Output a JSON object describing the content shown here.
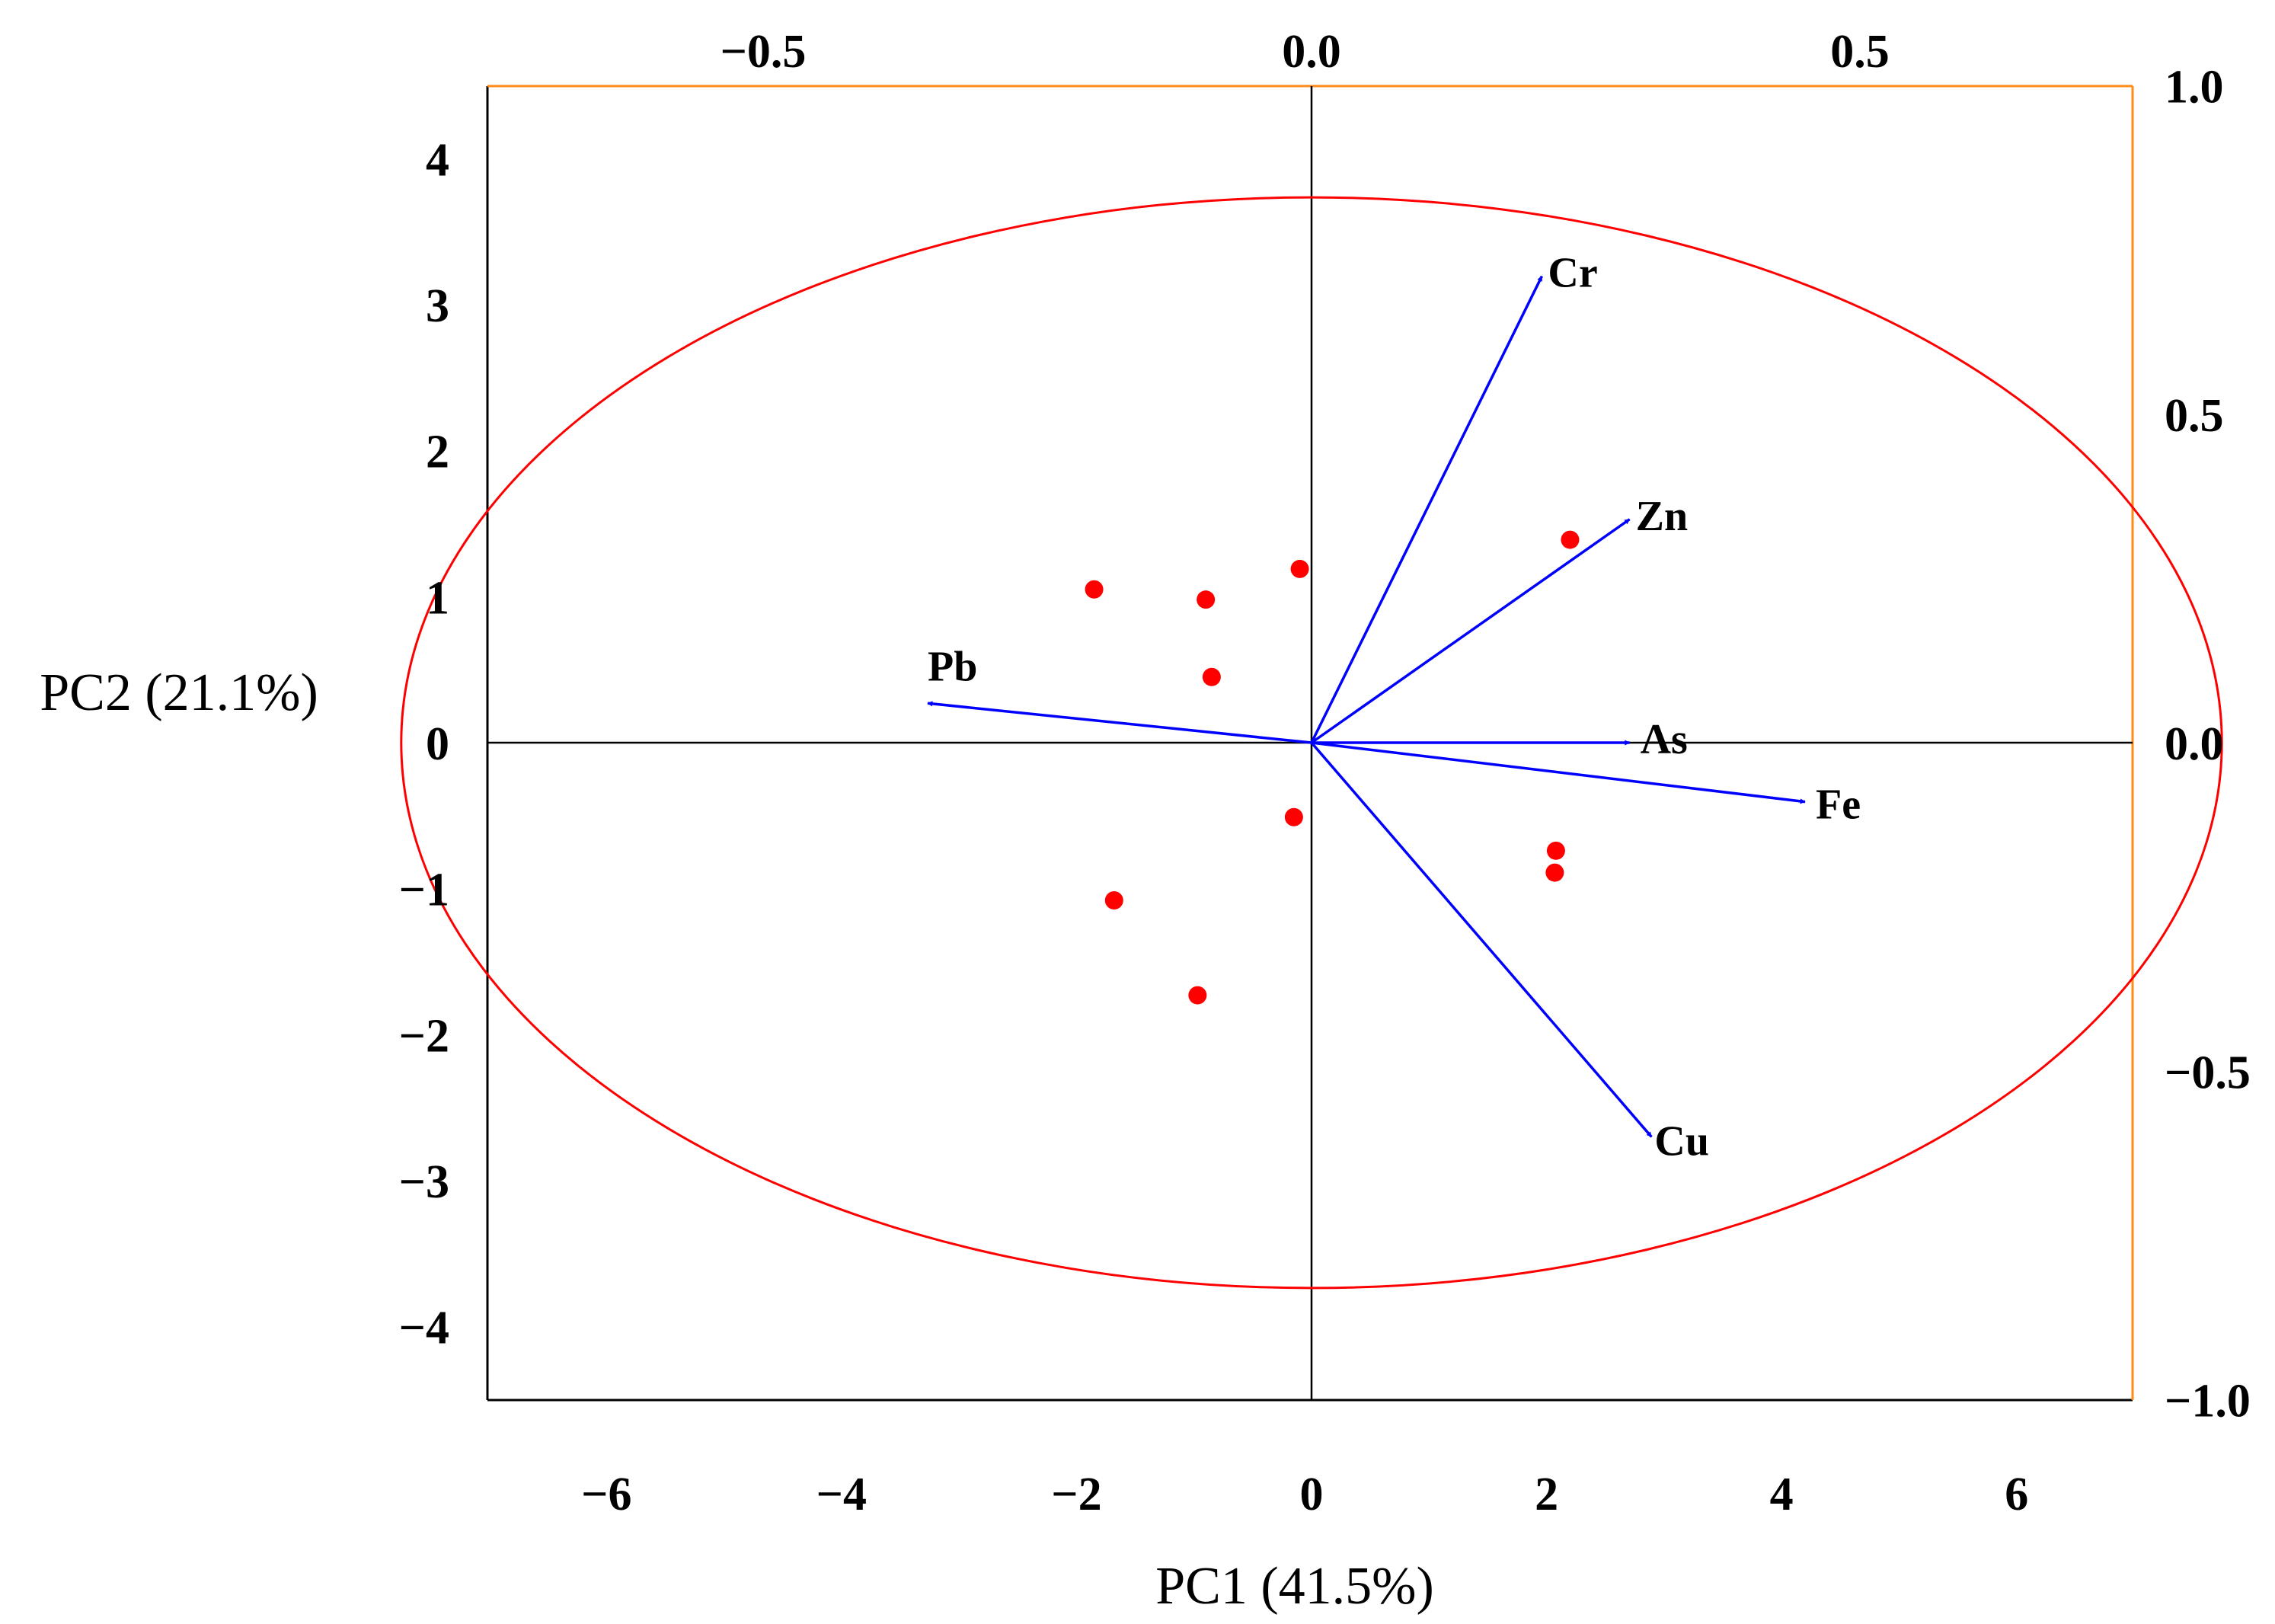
{
  "chart_data": {
    "type": "scatter",
    "subtype": "pca-biplot",
    "title": "",
    "xlabel": "PC1 (41.5%)",
    "ylabel": "PC2 (21.1%)",
    "xlim": [
      -7,
      7
    ],
    "ylim": [
      -4.5,
      4.5
    ],
    "x_ticks": [
      "−6",
      "−4",
      "−2",
      "0",
      "2",
      "4",
      "6"
    ],
    "x_tick_values": [
      -6,
      -4,
      -2,
      0,
      2,
      4,
      6
    ],
    "y_ticks": [
      "−4",
      "−3",
      "−2",
      "−1",
      "0",
      "1",
      "2",
      "3",
      "4"
    ],
    "y_tick_values": [
      -4,
      -3,
      -2,
      -1,
      0,
      1,
      2,
      3,
      4
    ],
    "top_axis": {
      "range": [
        -0.75,
        0.75
      ],
      "ticks": [
        "−0.5",
        "0.0",
        "0.5"
      ],
      "tick_values": [
        -0.5,
        0.0,
        0.5
      ]
    },
    "right_axis": {
      "range": [
        -1.0,
        1.0
      ],
      "ticks": [
        "1.0",
        "0.5",
        "0.0",
        "−0.5",
        "−1.0"
      ],
      "tick_values": [
        1.0,
        0.5,
        0.0,
        -0.5,
        -1.0
      ]
    },
    "scores": [
      {
        "x": -1.85,
        "y": 1.05
      },
      {
        "x": -0.9,
        "y": 0.98
      },
      {
        "x": -0.1,
        "y": 1.19
      },
      {
        "x": -0.85,
        "y": 0.45
      },
      {
        "x": 2.2,
        "y": 1.39
      },
      {
        "x": -0.15,
        "y": -0.51
      },
      {
        "x": 2.08,
        "y": -0.74
      },
      {
        "x": 2.07,
        "y": -0.89
      },
      {
        "x": -1.68,
        "y": -1.08
      },
      {
        "x": -0.97,
        "y": -1.73
      }
    ],
    "loadings": [
      {
        "name": "Cr",
        "x": 0.21,
        "y": 0.71
      },
      {
        "name": "Zn",
        "x": 0.29,
        "y": 0.34
      },
      {
        "name": "Pb",
        "x": -0.35,
        "y": 0.06
      },
      {
        "name": "As",
        "x": 0.29,
        "y": 0.0
      },
      {
        "name": "Fe",
        "x": 0.45,
        "y": -0.09
      },
      {
        "name": "Cu",
        "x": 0.31,
        "y": -0.6
      }
    ],
    "circle_radius": 0.83,
    "colors": {
      "points": "#ff0000",
      "circle": "#ff0000",
      "arrows": "#0000ff",
      "frame_left_bottom": "#000000",
      "frame_top_right": "#ff8c1a"
    }
  }
}
